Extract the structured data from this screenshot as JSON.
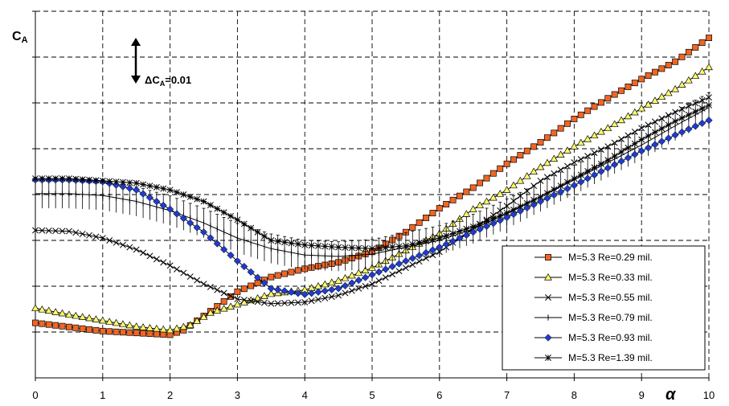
{
  "chart_data": {
    "type": "line",
    "title": "",
    "xlabel": "α",
    "ylabel_main": "C",
    "ylabel_sub": "A",
    "xlim": [
      0,
      10
    ],
    "x_ticks": [
      0,
      1,
      2,
      3,
      4,
      5,
      6,
      7,
      8,
      9,
      10
    ],
    "ylim": [
      0,
      0.08
    ],
    "y_tick_labels_shown": false,
    "grid": true,
    "legend_position": "lower-right",
    "scale_bar": {
      "delta_label_prefix": "ΔC",
      "delta_label_sub": "A",
      "delta_label_value": "=0.01",
      "value": 0.01,
      "y_from": 0.0642,
      "y_to": 0.0742,
      "x": 1.5
    },
    "colors": {
      "orange": "#f26522",
      "yellow": "#ffff66",
      "blue": "#1f3ccc",
      "black": "#000000",
      "grid": "#000000"
    },
    "series": [
      {
        "name": "M=5.3 Re=0.29 mil.",
        "marker": "square",
        "color": "#f26522",
        "points": [
          [
            0,
            0.012
          ],
          [
            1,
            0.0102
          ],
          [
            1.5,
            0.0098
          ],
          [
            2,
            0.0094
          ],
          [
            2.2,
            0.0104
          ],
          [
            2.5,
            0.0135
          ],
          [
            3,
            0.0188
          ],
          [
            3.5,
            0.022
          ],
          [
            4,
            0.0238
          ],
          [
            4.5,
            0.0252
          ],
          [
            5,
            0.0275
          ],
          [
            5.5,
            0.0318
          ],
          [
            6,
            0.037
          ],
          [
            6.5,
            0.0415
          ],
          [
            7,
            0.0467
          ],
          [
            7.5,
            0.0514
          ],
          [
            8,
            0.0565
          ],
          [
            8.5,
            0.061
          ],
          [
            9,
            0.0652
          ],
          [
            9.5,
            0.069
          ],
          [
            10,
            0.0742
          ]
        ]
      },
      {
        "name": "M=5.3 Re=0.33 mil.",
        "marker": "triangle",
        "color": "#ffff66",
        "points": [
          [
            0,
            0.0152
          ],
          [
            0.5,
            0.0138
          ],
          [
            1,
            0.0125
          ],
          [
            1.5,
            0.0112
          ],
          [
            2,
            0.0104
          ],
          [
            2.3,
            0.0115
          ],
          [
            2.6,
            0.0142
          ],
          [
            3,
            0.016
          ],
          [
            3.5,
            0.0183
          ],
          [
            4,
            0.0192
          ],
          [
            4.5,
            0.0212
          ],
          [
            5,
            0.024
          ],
          [
            5.5,
            0.0278
          ],
          [
            6,
            0.0315
          ],
          [
            6.5,
            0.0368
          ],
          [
            7,
            0.041
          ],
          [
            7.5,
            0.046
          ],
          [
            8,
            0.0505
          ],
          [
            8.5,
            0.0545
          ],
          [
            9,
            0.0588
          ],
          [
            9.5,
            0.063
          ],
          [
            10,
            0.0678
          ]
        ]
      },
      {
        "name": "M=5.3 Re=0.55 mil.",
        "marker": "x",
        "color": "#000000",
        "points": [
          [
            0,
            0.0322
          ],
          [
            0.5,
            0.032
          ],
          [
            1,
            0.0305
          ],
          [
            1.5,
            0.028
          ],
          [
            2,
            0.0245
          ],
          [
            2.5,
            0.0205
          ],
          [
            3,
            0.0172
          ],
          [
            3.5,
            0.0162
          ],
          [
            4,
            0.0165
          ],
          [
            4.5,
            0.018
          ],
          [
            5,
            0.0205
          ],
          [
            5.5,
            0.024
          ],
          [
            6,
            0.0275
          ],
          [
            6.5,
            0.0325
          ],
          [
            7,
            0.0375
          ],
          [
            7.5,
            0.043
          ],
          [
            8,
            0.047
          ],
          [
            8.5,
            0.0505
          ],
          [
            9,
            0.0545
          ],
          [
            9.5,
            0.058
          ],
          [
            10,
            0.0612
          ]
        ]
      },
      {
        "name": "M=5.3 Re=0.79 mil.",
        "marker": "plus",
        "color": "#000000",
        "error_bar": 0.0032,
        "points": [
          [
            0,
            0.0402
          ],
          [
            0.5,
            0.0402
          ],
          [
            1,
            0.0398
          ],
          [
            1.5,
            0.0385
          ],
          [
            2,
            0.0365
          ],
          [
            2.5,
            0.0338
          ],
          [
            3,
            0.0305
          ],
          [
            3.5,
            0.0282
          ],
          [
            4,
            0.0268
          ],
          [
            4.5,
            0.0265
          ],
          [
            5,
            0.027
          ],
          [
            5.5,
            0.0285
          ],
          [
            6,
            0.03
          ],
          [
            6.5,
            0.0325
          ],
          [
            7,
            0.0358
          ],
          [
            7.5,
            0.0395
          ],
          [
            8,
            0.0432
          ],
          [
            8.5,
            0.047
          ],
          [
            9,
            0.0508
          ],
          [
            9.5,
            0.055
          ],
          [
            10,
            0.059
          ]
        ]
      },
      {
        "name": "M=5.3 Re=0.93 mil.",
        "marker": "diamond",
        "color": "#1f3ccc",
        "points": [
          [
            0,
            0.0432
          ],
          [
            0.5,
            0.0432
          ],
          [
            1,
            0.0428
          ],
          [
            1.5,
            0.041
          ],
          [
            2,
            0.0368
          ],
          [
            2.5,
            0.0318
          ],
          [
            3,
            0.0255
          ],
          [
            3.5,
            0.0195
          ],
          [
            4,
            0.0182
          ],
          [
            4.5,
            0.0195
          ],
          [
            5,
            0.0225
          ],
          [
            5.5,
            0.0255
          ],
          [
            6,
            0.0285
          ],
          [
            6.5,
            0.0318
          ],
          [
            7,
            0.035
          ],
          [
            7.5,
            0.0385
          ],
          [
            8,
            0.042
          ],
          [
            8.5,
            0.0458
          ],
          [
            9,
            0.0495
          ],
          [
            9.5,
            0.053
          ],
          [
            10,
            0.0562
          ]
        ]
      },
      {
        "name": "M=5.3 Re=1.39 mil.",
        "marker": "star",
        "color": "#000000",
        "points": [
          [
            0,
            0.0435
          ],
          [
            0.5,
            0.0435
          ],
          [
            1,
            0.043
          ],
          [
            1.5,
            0.0425
          ],
          [
            2,
            0.041
          ],
          [
            2.5,
            0.0385
          ],
          [
            3,
            0.0345
          ],
          [
            3.5,
            0.03
          ],
          [
            4,
            0.029
          ],
          [
            4.5,
            0.0285
          ],
          [
            5,
            0.0282
          ],
          [
            5.5,
            0.0288
          ],
          [
            6,
            0.0305
          ],
          [
            6.5,
            0.033
          ],
          [
            7,
            0.036
          ],
          [
            7.5,
            0.0395
          ],
          [
            8,
            0.0435
          ],
          [
            8.5,
            0.0475
          ],
          [
            9,
            0.052
          ],
          [
            9.5,
            0.056
          ],
          [
            10,
            0.0595
          ]
        ]
      }
    ]
  }
}
